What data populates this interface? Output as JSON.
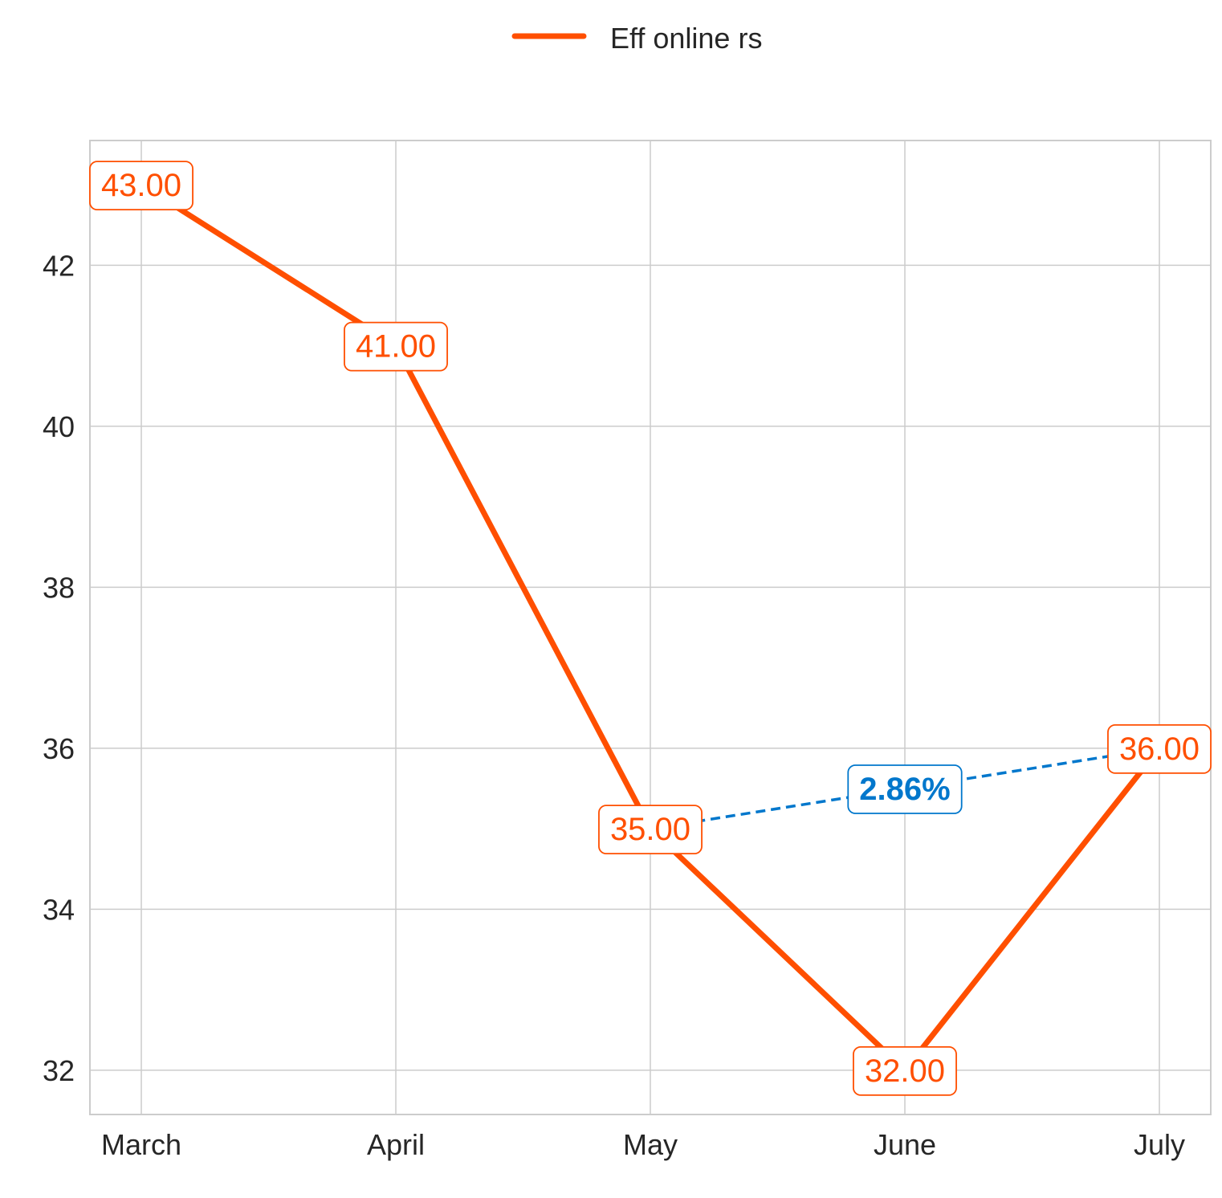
{
  "chart_data": {
    "type": "line",
    "categories": [
      "March",
      "April",
      "May",
      "June",
      "July"
    ],
    "series": [
      {
        "name": "Eff online rs",
        "values": [
          43.0,
          41.0,
          35.0,
          32.0,
          36.0
        ],
        "color": "#FF4F00",
        "data_labels": [
          "43.00",
          "41.00",
          "35.00",
          "32.00",
          "36.00"
        ]
      }
    ],
    "yticks": [
      32,
      34,
      36,
      38,
      40,
      42
    ],
    "ytick_labels": [
      "32",
      "34",
      "36",
      "38",
      "40",
      "42"
    ],
    "ylim": [
      31.45,
      43.55
    ],
    "grid": true,
    "legend_position": "top-center",
    "annotation": {
      "text": "2.86%",
      "from_category": "May",
      "to_category": "July",
      "from_value": 35.0,
      "to_value": 36.0,
      "color": "#0077CC",
      "style": "dashed"
    },
    "title": "",
    "xlabel": "",
    "ylabel": ""
  }
}
